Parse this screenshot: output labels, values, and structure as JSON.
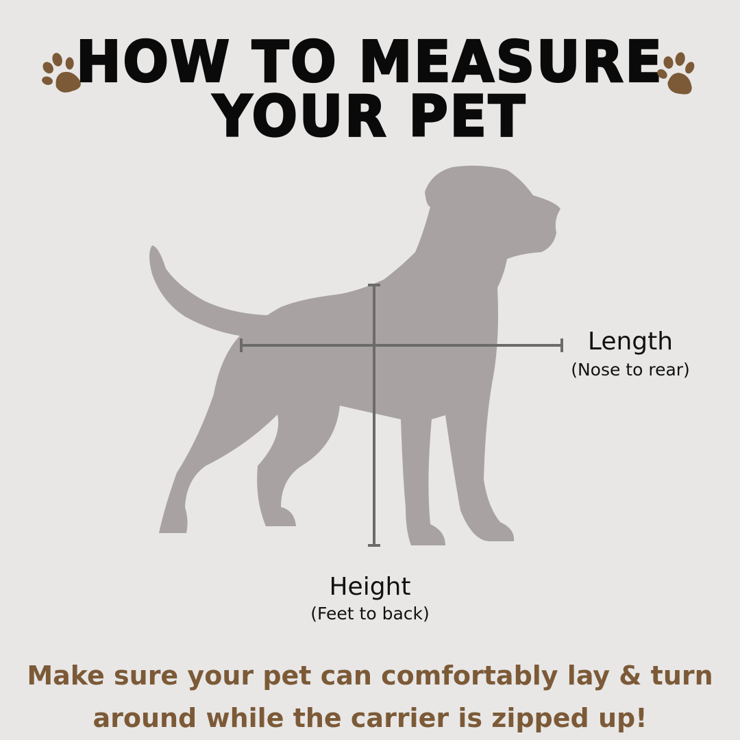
{
  "title": {
    "line1": "HOW TO MEASURE",
    "line2": "YOUR PET"
  },
  "icons": {
    "left": "paw-print-icon",
    "right": "paw-print-icon"
  },
  "length": {
    "label": "Length",
    "note": "(Nose to rear)"
  },
  "height": {
    "label": "Height",
    "note": "(Feet to back)"
  },
  "footer": {
    "line1": "Make sure your pet can comfortably lay & turn",
    "line2": "around while the carrier is zipped up!"
  },
  "colors": {
    "background": "#e8e7e6",
    "accent": "#7c5a37",
    "silhouette": "#a8a3a2",
    "measure_line": "#6b6b6b"
  }
}
